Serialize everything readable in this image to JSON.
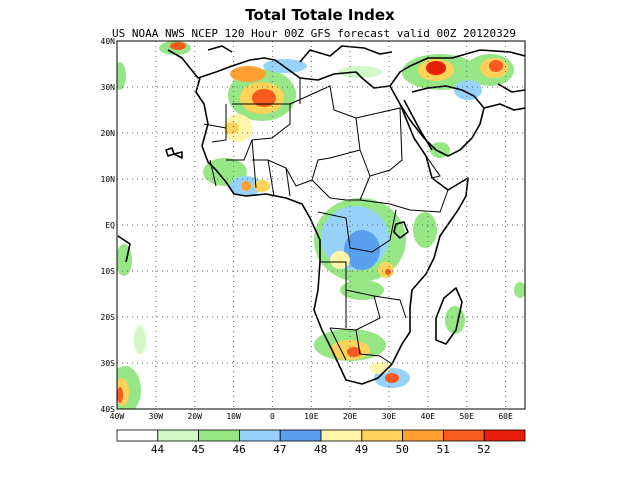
{
  "map": {
    "title": "Total Totale Index",
    "subtitle": "US NOAA NWS NCEP 120 Hour 00Z GFS forecast valid 00Z 20120329",
    "lat_labels": [
      "40N",
      "30N",
      "20N",
      "10N",
      "EQ",
      "10S",
      "20S",
      "30S",
      "40S"
    ],
    "lon_labels": [
      "40W",
      "30W",
      "20W",
      "10W",
      "0",
      "10E",
      "20E",
      "30E",
      "40E",
      "50E",
      "60E"
    ],
    "extent": {
      "lon_min": -40,
      "lon_max": 65,
      "lat_min": -40,
      "lat_max": 40
    }
  },
  "colorbar": {
    "labels": [
      "44",
      "45",
      "46",
      "47",
      "48",
      "49",
      "50",
      "51",
      "52"
    ],
    "colors": [
      "#ffffff",
      "#d2f8c8",
      "#96e686",
      "#96d2fa",
      "#5aa0f0",
      "#fff5a8",
      "#ffd25a",
      "#ffa032",
      "#fa5a1e",
      "#e61e0a"
    ]
  }
}
